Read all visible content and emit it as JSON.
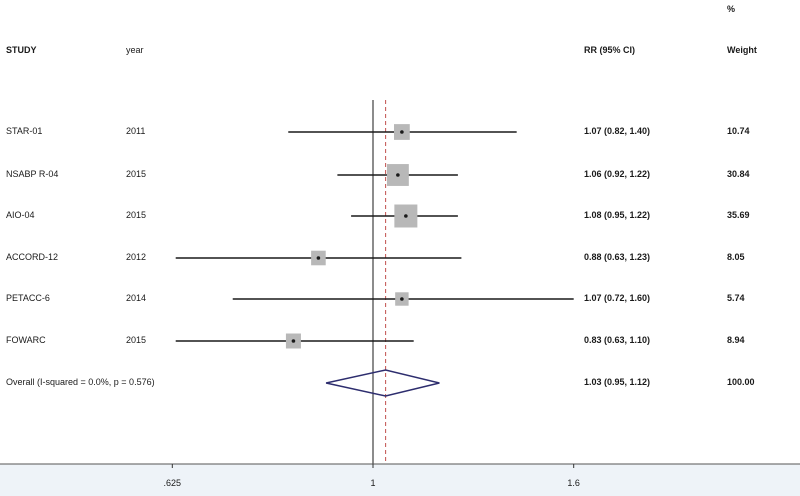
{
  "header": {
    "study": "STUDY",
    "year": "year",
    "rr": "RR (95% CI)",
    "weight_pct": "%",
    "weight": "Weight"
  },
  "chart_data": {
    "type": "forest",
    "scale": "log",
    "xlim": [
      0.5,
      2.0
    ],
    "null_value": 1,
    "pooled_line": 1.03,
    "ticks": [
      ".625",
      "1",
      "1.6"
    ],
    "tick_values": [
      0.625,
      1,
      1.6
    ],
    "studies": [
      {
        "name": "STAR-01",
        "year": "2011",
        "rr": 1.07,
        "lo": 0.82,
        "hi": 1.4,
        "rr_text": "1.07 (0.82, 1.40)",
        "weight": 10.74,
        "weight_text": "10.74"
      },
      {
        "name": "NSABP R-04",
        "year": "2015",
        "rr": 1.06,
        "lo": 0.92,
        "hi": 1.22,
        "rr_text": "1.06 (0.92, 1.22)",
        "weight": 30.84,
        "weight_text": "30.84"
      },
      {
        "name": "AIO-04",
        "year": "2015",
        "rr": 1.08,
        "lo": 0.95,
        "hi": 1.22,
        "rr_text": "1.08 (0.95, 1.22)",
        "weight": 35.69,
        "weight_text": "35.69"
      },
      {
        "name": "ACCORD-12",
        "year": "2012",
        "rr": 0.88,
        "lo": 0.63,
        "hi": 1.23,
        "rr_text": "0.88 (0.63, 1.23)",
        "weight": 8.05,
        "weight_text": "8.05"
      },
      {
        "name": "PETACC-6",
        "year": "2014",
        "rr": 1.07,
        "lo": 0.72,
        "hi": 1.6,
        "rr_text": "1.07 (0.72, 1.60)",
        "weight": 5.74,
        "weight_text": "5.74"
      },
      {
        "name": "FOWARC",
        "year": "2015",
        "rr": 0.83,
        "lo": 0.63,
        "hi": 1.1,
        "rr_text": "0.83 (0.63, 1.10)",
        "weight": 8.94,
        "weight_text": "8.94"
      }
    ],
    "overall": {
      "label": "Overall  (I-squared = 0.0%, p = 0.576)",
      "rr": 1.03,
      "lo": 0.95,
      "hi": 1.12,
      "rr_text": "1.03 (0.95, 1.12)",
      "weight_text": "100.00"
    },
    "colors": {
      "line": "#1a1a1a",
      "box": "#b8b8b8",
      "diamond": "#2d2d6e",
      "pooled": "#c0504d"
    }
  }
}
